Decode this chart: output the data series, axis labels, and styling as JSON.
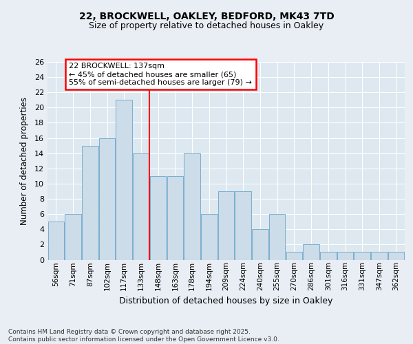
{
  "title1": "22, BROCKWELL, OAKLEY, BEDFORD, MK43 7TD",
  "title2": "Size of property relative to detached houses in Oakley",
  "xlabel": "Distribution of detached houses by size in Oakley",
  "ylabel": "Number of detached properties",
  "bins": [
    "56sqm",
    "71sqm",
    "87sqm",
    "102sqm",
    "117sqm",
    "133sqm",
    "148sqm",
    "163sqm",
    "178sqm",
    "194sqm",
    "209sqm",
    "224sqm",
    "240sqm",
    "255sqm",
    "270sqm",
    "286sqm",
    "301sqm",
    "316sqm",
    "331sqm",
    "347sqm",
    "362sqm"
  ],
  "values": [
    5,
    6,
    15,
    16,
    21,
    14,
    11,
    11,
    14,
    6,
    9,
    9,
    4,
    6,
    1,
    2,
    1,
    1,
    1,
    1,
    1
  ],
  "bar_color": "#ccdce8",
  "bar_edge_color": "#7aaed0",
  "red_line_index": 5,
  "annotation_line1": "22 BROCKWELL: 137sqm",
  "annotation_line2": "← 45% of detached houses are smaller (65)",
  "annotation_line3": "55% of semi-detached houses are larger (79) →",
  "ylim": [
    0,
    26
  ],
  "yticks": [
    0,
    2,
    4,
    6,
    8,
    10,
    12,
    14,
    16,
    18,
    20,
    22,
    24,
    26
  ],
  "bg_color": "#dde8f0",
  "grid_color": "#ffffff",
  "fig_bg": "#e8eef4",
  "footer": "Contains HM Land Registry data © Crown copyright and database right 2025.\nContains public sector information licensed under the Open Government Licence v3.0."
}
